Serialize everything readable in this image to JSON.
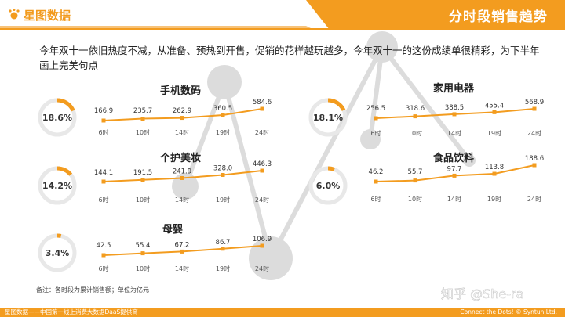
{
  "header": {
    "brand": "星图数据",
    "title": "分时段销售趋势"
  },
  "intro": "今年双十一依旧热度不减，从准备、预热到开售，促销的花样越玩越多，今年双十一的这份成绩单很精彩，为下半年画上完美句点",
  "note": "备注：各时段为累计销售额；单位为亿元",
  "footer": {
    "left": "星图数据——中国第一线上消费大数据DaaS提供商",
    "right": "Connect the Dots! © Syntun Ltd."
  },
  "watermark": "知乎 @She-ra",
  "colors": {
    "accent": "#F39C1F",
    "ring_bg": "#E8E8E8",
    "text": "#333333"
  },
  "chart_data": [
    {
      "type": "line",
      "title": "手机数码",
      "share": "18.6%",
      "share_value": 0.186,
      "categories": [
        "6时",
        "10时",
        "14时",
        "19时",
        "24时"
      ],
      "values": [
        166.9,
        235.7,
        262.9,
        360.5,
        584.6
      ],
      "labels": [
        "166.9",
        "235.7",
        "262.9",
        "360.5",
        "584.6"
      ]
    },
    {
      "type": "line",
      "title": "个护美妆",
      "share": "14.2%",
      "share_value": 0.142,
      "categories": [
        "6时",
        "10时",
        "14时",
        "19时",
        "24时"
      ],
      "values": [
        144.1,
        191.5,
        241.9,
        328.0,
        446.3
      ],
      "labels": [
        "144.1",
        "191.5",
        "241.9",
        "328.0",
        "446.3"
      ]
    },
    {
      "type": "line",
      "title": "母婴",
      "share": "3.4%",
      "share_value": 0.034,
      "categories": [
        "6时",
        "10时",
        "14时",
        "19时",
        "24时"
      ],
      "values": [
        42.5,
        55.4,
        67.2,
        86.7,
        106.9
      ],
      "labels": [
        "42.5",
        "55.4",
        "67.2",
        "86.7",
        "106.9"
      ]
    },
    {
      "type": "line",
      "title": "家用电器",
      "share": "18.1%",
      "share_value": 0.181,
      "categories": [
        "6时",
        "10时",
        "14时",
        "19时",
        "24时"
      ],
      "values": [
        256.5,
        318.6,
        388.5,
        455.4,
        568.9
      ],
      "labels": [
        "256.5",
        "318.6",
        "388.5",
        "455.4",
        "568.9"
      ]
    },
    {
      "type": "line",
      "title": "食品饮料",
      "share": "6.0%",
      "share_value": 0.06,
      "categories": [
        "6时",
        "10时",
        "14时",
        "19时",
        "24时"
      ],
      "values": [
        46.2,
        55.7,
        97.7,
        113.8,
        188.6
      ],
      "labels": [
        "46.2",
        "55.7",
        "97.7",
        "113.8",
        "188.6"
      ]
    }
  ]
}
